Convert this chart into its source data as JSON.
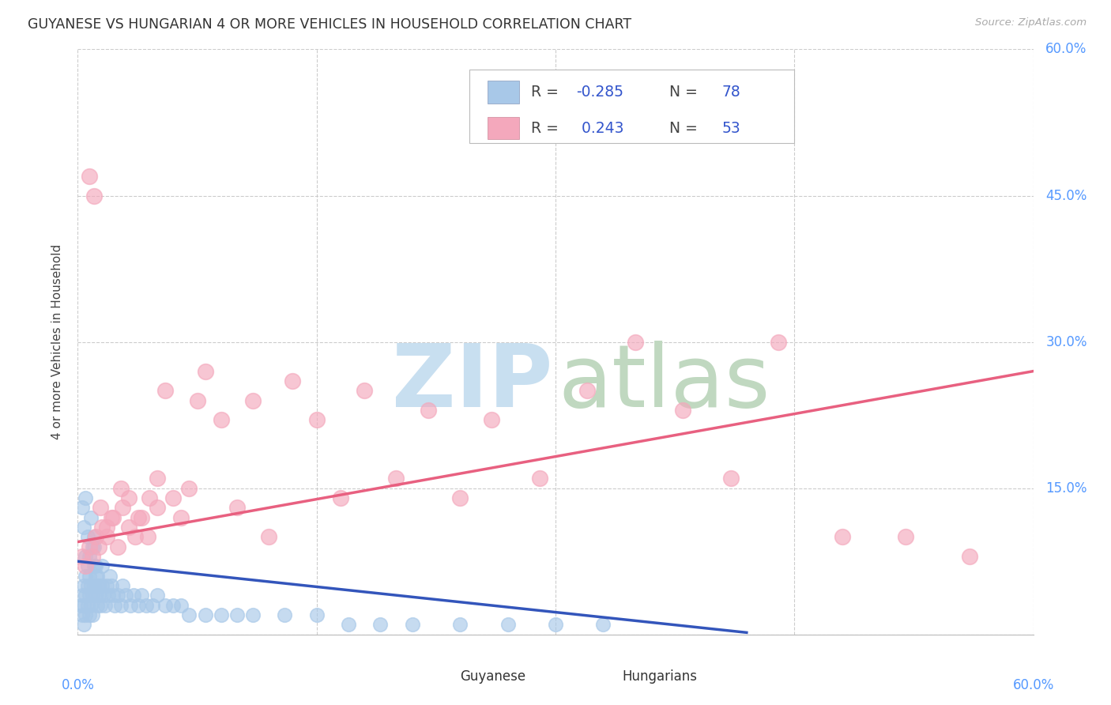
{
  "title": "GUYANESE VS HUNGARIAN 4 OR MORE VEHICLES IN HOUSEHOLD CORRELATION CHART",
  "source": "Source: ZipAtlas.com",
  "ylabel": "4 or more Vehicles in Household",
  "xlim": [
    0.0,
    0.6
  ],
  "ylim": [
    0.0,
    0.6
  ],
  "ytick_positions": [
    0.0,
    0.15,
    0.3,
    0.45,
    0.6
  ],
  "right_ytick_labels": [
    "",
    "15.0%",
    "30.0%",
    "45.0%",
    "60.0%"
  ],
  "guyanese_color": "#a8c8e8",
  "hungarian_color": "#f4a8bc",
  "guyanese_line_color": "#3355bb",
  "hungarian_line_color": "#e86080",
  "watermark_zip_color": "#c8dff0",
  "watermark_atlas_color": "#c0d8c0",
  "background_color": "#ffffff",
  "grid_color": "#cccccc",
  "label_color": "#5599ff",
  "guyanese_x": [
    0.002,
    0.003,
    0.003,
    0.004,
    0.004,
    0.004,
    0.005,
    0.005,
    0.005,
    0.005,
    0.006,
    0.006,
    0.006,
    0.007,
    0.007,
    0.007,
    0.008,
    0.008,
    0.009,
    0.009,
    0.01,
    0.01,
    0.01,
    0.011,
    0.011,
    0.012,
    0.012,
    0.013,
    0.014,
    0.015,
    0.015,
    0.016,
    0.017,
    0.018,
    0.019,
    0.02,
    0.021,
    0.022,
    0.023,
    0.025,
    0.027,
    0.028,
    0.03,
    0.033,
    0.035,
    0.038,
    0.04,
    0.043,
    0.047,
    0.05,
    0.055,
    0.06,
    0.065,
    0.07,
    0.08,
    0.09,
    0.1,
    0.11,
    0.13,
    0.15,
    0.17,
    0.19,
    0.21,
    0.24,
    0.27,
    0.3,
    0.33,
    0.003,
    0.004,
    0.005,
    0.006,
    0.007,
    0.008,
    0.009,
    0.01,
    0.011,
    0.012,
    0.013
  ],
  "guyanese_y": [
    0.03,
    0.02,
    0.04,
    0.01,
    0.03,
    0.05,
    0.02,
    0.04,
    0.06,
    0.08,
    0.03,
    0.05,
    0.07,
    0.02,
    0.04,
    0.06,
    0.03,
    0.05,
    0.02,
    0.04,
    0.05,
    0.07,
    0.09,
    0.04,
    0.06,
    0.03,
    0.05,
    0.04,
    0.03,
    0.05,
    0.07,
    0.04,
    0.03,
    0.05,
    0.04,
    0.06,
    0.05,
    0.04,
    0.03,
    0.04,
    0.03,
    0.05,
    0.04,
    0.03,
    0.04,
    0.03,
    0.04,
    0.03,
    0.03,
    0.04,
    0.03,
    0.03,
    0.03,
    0.02,
    0.02,
    0.02,
    0.02,
    0.02,
    0.02,
    0.02,
    0.01,
    0.01,
    0.01,
    0.01,
    0.01,
    0.01,
    0.01,
    0.13,
    0.11,
    0.14,
    0.1,
    0.08,
    0.12,
    0.09,
    0.1,
    0.07,
    0.06,
    0.05
  ],
  "hungarian_x": [
    0.003,
    0.005,
    0.007,
    0.009,
    0.011,
    0.013,
    0.015,
    0.018,
    0.021,
    0.025,
    0.028,
    0.032,
    0.036,
    0.04,
    0.045,
    0.05,
    0.055,
    0.06,
    0.065,
    0.07,
    0.075,
    0.08,
    0.09,
    0.1,
    0.11,
    0.12,
    0.135,
    0.15,
    0.165,
    0.18,
    0.2,
    0.22,
    0.24,
    0.26,
    0.29,
    0.32,
    0.35,
    0.38,
    0.41,
    0.44,
    0.48,
    0.52,
    0.56,
    0.007,
    0.01,
    0.014,
    0.018,
    0.022,
    0.027,
    0.032,
    0.038,
    0.044,
    0.05
  ],
  "hungarian_y": [
    0.08,
    0.07,
    0.09,
    0.08,
    0.1,
    0.09,
    0.11,
    0.1,
    0.12,
    0.09,
    0.13,
    0.11,
    0.1,
    0.12,
    0.14,
    0.13,
    0.25,
    0.14,
    0.12,
    0.15,
    0.24,
    0.27,
    0.22,
    0.13,
    0.24,
    0.1,
    0.26,
    0.22,
    0.14,
    0.25,
    0.16,
    0.23,
    0.14,
    0.22,
    0.16,
    0.25,
    0.3,
    0.23,
    0.16,
    0.3,
    0.1,
    0.1,
    0.08,
    0.47,
    0.45,
    0.13,
    0.11,
    0.12,
    0.15,
    0.14,
    0.12,
    0.1,
    0.16
  ],
  "guyanese_line_x": [
    0.0,
    0.42
  ],
  "guyanese_line_y": [
    0.075,
    0.002
  ],
  "hungarian_line_x": [
    0.0,
    0.6
  ],
  "hungarian_line_y": [
    0.095,
    0.27
  ]
}
